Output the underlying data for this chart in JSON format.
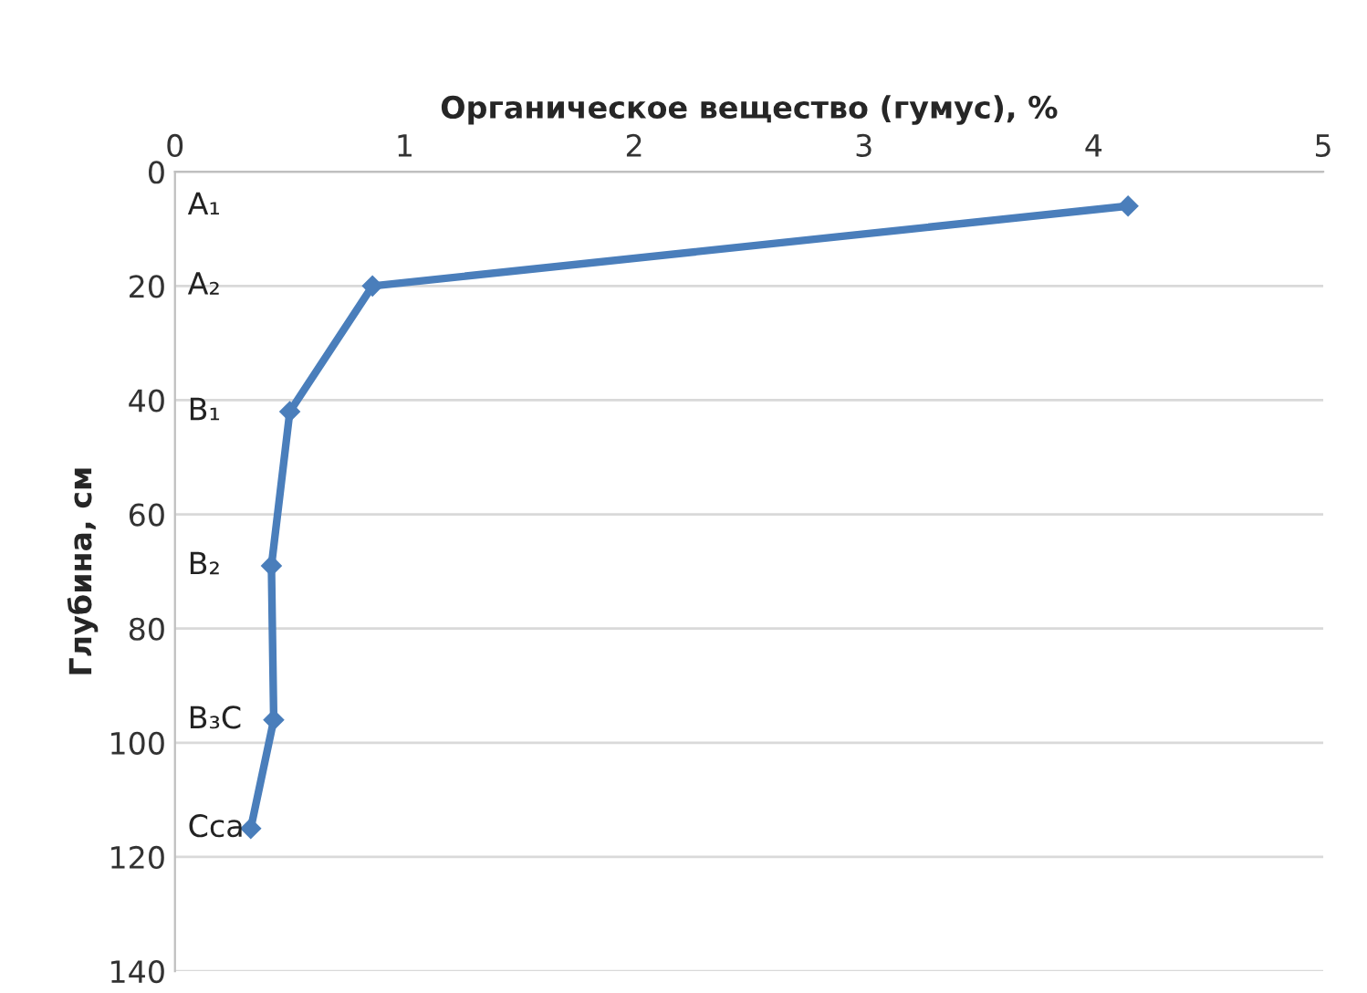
{
  "chart_data": {
    "type": "line",
    "xlabel": "Органическое вещество (гумус), %",
    "ylabel": "Глубина, см",
    "series": [
      {
        "color": "#4a7ebb",
        "x": [
          4.15,
          0.86,
          0.5,
          0.42,
          0.43,
          0.33
        ],
        "values": [
          6,
          20,
          42,
          69,
          96,
          115
        ]
      }
    ],
    "xlim": [
      0,
      5
    ],
    "xticks": [
      0,
      1,
      2,
      3,
      4,
      5
    ],
    "ylim": [
      140,
      0
    ],
    "yticks": [
      0,
      20,
      40,
      60,
      80,
      100,
      120,
      140
    ],
    "grid": "y",
    "marker": "diamond",
    "line_style": "solid",
    "annotations": [
      "A₁",
      "A₂",
      "B₁",
      "B₂",
      "B₃C",
      "Cca"
    ]
  }
}
